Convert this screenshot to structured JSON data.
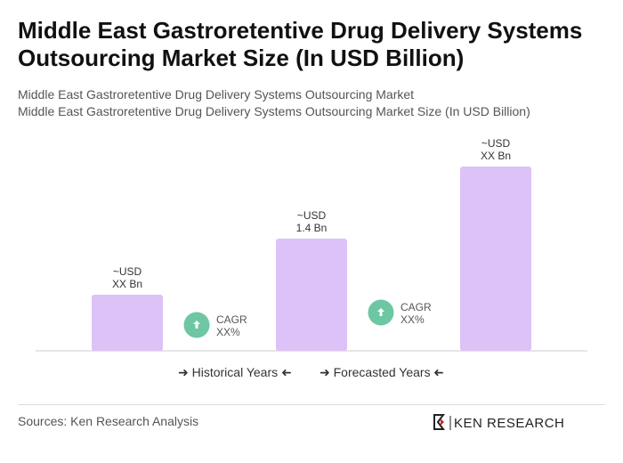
{
  "title": "Middle East Gastroretentive Drug Delivery Systems Outsourcing Market Size (In USD Billion)",
  "subtitle1": "Middle East Gastroretentive Drug Delivery Systems Outsourcing Market",
  "subtitle2": "Middle East Gastroretentive Drug Delivery Systems Outsourcing Market Size (In USD Billion)",
  "chart_data": {
    "type": "bar",
    "categories": [
      "",
      "",
      ""
    ],
    "values": [
      0.7,
      1.4,
      2.3
    ],
    "data_labels": [
      [
        "~USD",
        "XX Bn"
      ],
      [
        "~USD",
        "1.4 Bn"
      ],
      [
        "~USD",
        "XX Bn"
      ]
    ],
    "cagr": [
      {
        "label": "CAGR",
        "value": "XX%"
      },
      {
        "label": "CAGR",
        "value": "XX%"
      }
    ],
    "bar_color": "#dcc2f7",
    "cagr_color": "#6dc7a3",
    "grid": false
  },
  "legend": {
    "historical": "Historical Years",
    "forecasted": "Forecasted Years"
  },
  "source": "Sources: Ken Research Analysis",
  "logo_text": "KEN RESEARCH"
}
